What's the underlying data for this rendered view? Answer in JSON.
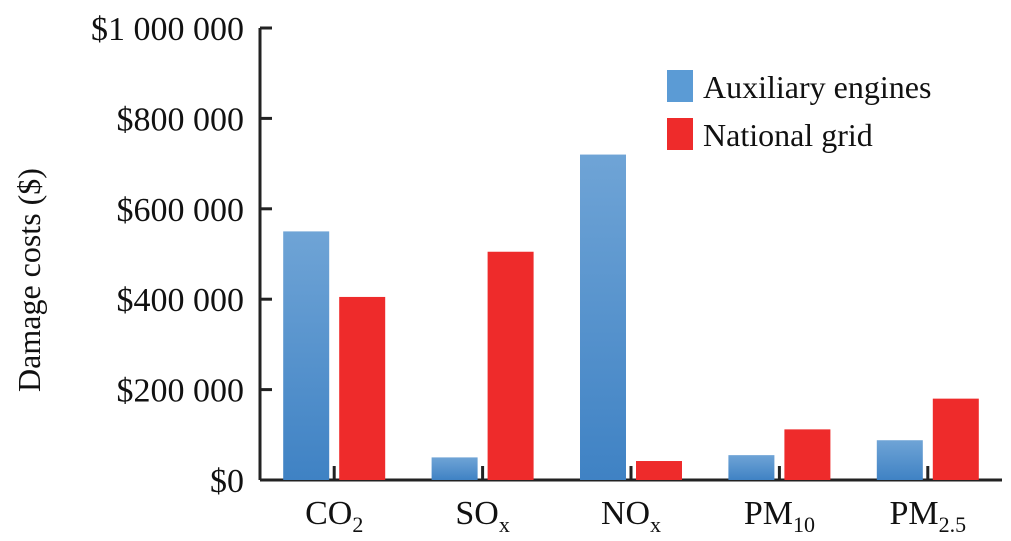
{
  "chart_data": {
    "type": "bar",
    "ylabel": "Damage costs ($)",
    "ylim": [
      0,
      1000000
    ],
    "y_ticks": [
      {
        "value": 0,
        "label": "$0"
      },
      {
        "value": 200000,
        "label": "$200 000"
      },
      {
        "value": 400000,
        "label": "$400 000"
      },
      {
        "value": 600000,
        "label": "$600 000"
      },
      {
        "value": 800000,
        "label": "$800 000"
      },
      {
        "value": 1000000,
        "label": "$1 000 000"
      }
    ],
    "categories": [
      {
        "base": "CO",
        "sub": "2"
      },
      {
        "base": "SO",
        "sub": "x"
      },
      {
        "base": "NO",
        "sub": "x"
      },
      {
        "base": "PM",
        "sub": "10"
      },
      {
        "base": "PM",
        "sub": "2.5"
      }
    ],
    "series": [
      {
        "name": "Auxiliary engines",
        "color": "#5b9bd5",
        "values": [
          550000,
          50000,
          720000,
          55000,
          88000
        ]
      },
      {
        "name": "National grid",
        "color": "#ee2b2b",
        "values": [
          405000,
          505000,
          42000,
          112000,
          180000
        ]
      }
    ],
    "legend_position": "top-right",
    "grid": false
  }
}
